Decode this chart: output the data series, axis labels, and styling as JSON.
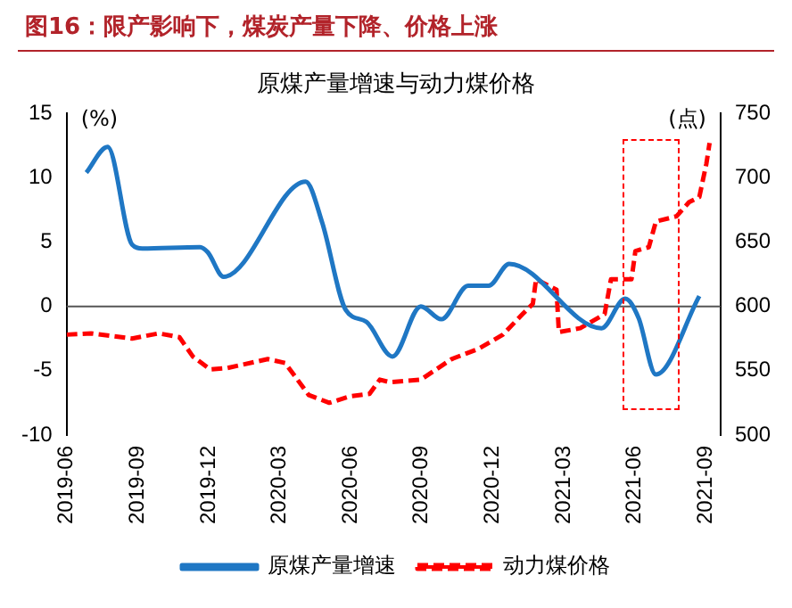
{
  "chart_data": {
    "type": "line",
    "title": "图16：限产影响下，煤炭产量下降、价格上涨",
    "subtitle": "原煤产量增速与动力煤价格",
    "ylabel": "(%)",
    "y2label": "(点)",
    "xlim": [
      "2019-06",
      "2021-09-20"
    ],
    "xticks": [
      "2019-06",
      "2019-09",
      "2019-12",
      "2020-03",
      "2020-06",
      "2020-09",
      "2020-12",
      "2021-03",
      "2021-06",
      "2021-09"
    ],
    "ylim": [
      -10,
      15
    ],
    "yticks": [
      -10,
      -5,
      0,
      5,
      10,
      15
    ],
    "y2lim": [
      500,
      750
    ],
    "y2ticks": [
      500,
      550,
      600,
      650,
      700,
      750
    ],
    "grid": false,
    "legend": "bottom",
    "marker": "none",
    "ref_lines": [
      {
        "axis": "y",
        "value": 0,
        "color": "#555555"
      }
    ],
    "series": [
      {
        "name": "原煤产量增速",
        "color": "#1f77c4",
        "line_style": "solid",
        "x": [
          "2019-06-26",
          "2019-07-23",
          "2019-08-24",
          "2019-09-07",
          "2019-11-20",
          "2019-11-30",
          "2019-12-20",
          "2020-04-04",
          "2020-04-25",
          "2020-05-25",
          "2020-06-21",
          "2020-07-24",
          "2020-08-30",
          "2020-09-26",
          "2020-10-30",
          "2020-11-26",
          "2020-12-22",
          "2021-04-19",
          "2021-05-19",
          "2021-06-06",
          "2021-06-28",
          "2021-08-23"
        ],
        "values": [
          10.4,
          12.4,
          4.8,
          4.5,
          4.6,
          4.2,
          2.3,
          9.7,
          6.5,
          -0.3,
          -1.2,
          -3.9,
          0.0,
          -1.0,
          1.6,
          1.6,
          3.3,
          -1.7,
          0.6,
          -0.9,
          -5.3,
          0.8
        ]
      },
      {
        "name": "动力煤价格",
        "color": "#ff0000",
        "line_style": "dashed",
        "axis": "y2",
        "x": [
          "2019-06-01",
          "2019-07-02",
          "2019-08-24",
          "2019-09-28",
          "2019-10-24",
          "2019-11-11",
          "2019-12-03",
          "2019-12-24",
          "2020-02-16",
          "2020-03-08",
          "2020-04-08",
          "2020-05-04",
          "2020-05-30",
          "2020-06-25",
          "2020-07-08",
          "2020-07-21",
          "2020-08-30",
          "2020-10-09",
          "2020-11-13",
          "2020-12-14",
          "2021-01-09",
          "2021-01-22",
          "2021-01-26",
          "2021-02-22",
          "2021-02-25",
          "2021-03-22",
          "2021-04-23",
          "2021-05-01",
          "2021-05-27",
          "2021-06-02",
          "2021-06-19",
          "2021-06-28",
          "2021-07-24",
          "2021-08-10",
          "2021-08-23",
          "2021-09-02",
          "2021-09-06"
        ],
        "values": [
          578,
          579,
          575,
          579,
          576,
          561,
          551,
          552,
          559,
          556,
          531,
          525,
          530,
          532,
          543,
          541,
          543,
          559,
          567,
          578,
          594,
          602,
          621,
          613,
          580,
          583,
          594,
          621,
          621,
          643,
          646,
          666,
          670,
          681,
          685,
          711,
          727
        ]
      }
    ]
  }
}
